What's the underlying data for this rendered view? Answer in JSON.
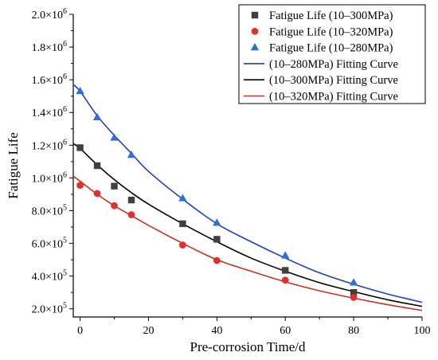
{
  "chart_data": {
    "type": "scatter",
    "xlabel": "Pre-corrosion Time/d",
    "ylabel": "Fatigue Life",
    "xlim": [
      -2,
      100
    ],
    "ylim": [
      150000,
      2000000
    ],
    "x_ticks": [
      0,
      20,
      40,
      60,
      80,
      100
    ],
    "y_ticks": [
      {
        "value": 200000,
        "mantissa": "2.0",
        "exp": "5"
      },
      {
        "value": 400000,
        "mantissa": "4.0",
        "exp": "5"
      },
      {
        "value": 600000,
        "mantissa": "6.0",
        "exp": "5"
      },
      {
        "value": 800000,
        "mantissa": "8.0",
        "exp": "5"
      },
      {
        "value": 1000000,
        "mantissa": "1.0",
        "exp": "6"
      },
      {
        "value": 1200000,
        "mantissa": "1.2",
        "exp": "6"
      },
      {
        "value": 1400000,
        "mantissa": "1.4",
        "exp": "6"
      },
      {
        "value": 1600000,
        "mantissa": "1.6",
        "exp": "6"
      },
      {
        "value": 1800000,
        "mantissa": "1.8",
        "exp": "6"
      },
      {
        "value": 2000000,
        "mantissa": "2.0",
        "exp": "6"
      }
    ],
    "tick_base": "×10",
    "legend_position": "top-right",
    "grid": false,
    "series": [
      {
        "name": "Fatigue Life (10–300MPa)",
        "kind": "points",
        "marker": "square",
        "color": "#404040",
        "x": [
          0,
          5,
          10,
          15,
          30,
          40,
          60,
          80
        ],
        "y": [
          1185000,
          1075000,
          950000,
          865000,
          720000,
          625000,
          435000,
          300000
        ]
      },
      {
        "name": "Fatigue Life (10–320MPa)",
        "kind": "points",
        "marker": "circle",
        "color": "#e03030",
        "x": [
          0,
          5,
          10,
          15,
          30,
          40,
          60,
          80
        ],
        "y": [
          955000,
          905000,
          830000,
          775000,
          590000,
          495000,
          375000,
          270000
        ]
      },
      {
        "name": "Fatigue Life (10–280MPa)",
        "kind": "points",
        "marker": "triangle",
        "color": "#2f6fd6",
        "x": [
          0,
          5,
          10,
          15,
          30,
          40,
          60,
          80
        ],
        "y": [
          1530000,
          1370000,
          1245000,
          1140000,
          875000,
          725000,
          525000,
          360000
        ]
      },
      {
        "name": "(10–280MPa) Fitting Curve",
        "kind": "curve",
        "color": "#1f3fbf",
        "x": [
          -2,
          0,
          5,
          10,
          15,
          20,
          30,
          40,
          50,
          60,
          70,
          80,
          90,
          100
        ],
        "y": [
          1570000,
          1530000,
          1380000,
          1260000,
          1150000,
          1040000,
          870000,
          720000,
          610000,
          510000,
          420000,
          350000,
          290000,
          240000
        ]
      },
      {
        "name": "(10–300MPa) Fitting Curve",
        "kind": "curve",
        "color": "#000000",
        "x": [
          -2,
          0,
          5,
          10,
          15,
          20,
          30,
          40,
          50,
          60,
          70,
          80,
          90,
          100
        ],
        "y": [
          1210000,
          1180000,
          1080000,
          990000,
          910000,
          840000,
          720000,
          610000,
          510000,
          430000,
          360000,
          305000,
          255000,
          215000
        ]
      },
      {
        "name": "(10–320MPa) Fitting Curve",
        "kind": "curve",
        "color": "#c8321e",
        "x": [
          -2,
          0,
          5,
          10,
          15,
          20,
          30,
          40,
          50,
          60,
          70,
          80,
          90,
          100
        ],
        "y": [
          1010000,
          980000,
          900000,
          830000,
          770000,
          710000,
          600000,
          500000,
          430000,
          365000,
          310000,
          265000,
          225000,
          190000
        ]
      }
    ],
    "legend_order": [
      0,
      1,
      2,
      3,
      4,
      5
    ]
  }
}
